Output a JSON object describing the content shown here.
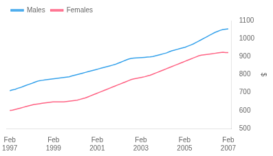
{
  "chart_data": {
    "type": "line",
    "ylabel": "$",
    "x": [
      1997.0833,
      1997.2068,
      1997.3302,
      1997.4537,
      1997.5772,
      1997.7006,
      1997.8241,
      1997.9475,
      1998.071,
      1998.1944,
      1998.3179,
      1998.4414,
      1998.5648,
      1998.6883,
      1998.8117,
      1998.9352,
      1999.0586,
      1999.1821,
      1999.3056,
      1999.429,
      1999.5525,
      1999.6759,
      1999.7994,
      1999.9228,
      2000.0463,
      2000.1698,
      2000.2932,
      2000.4167,
      2000.5401,
      2000.6636,
      2000.787,
      2000.9105,
      2001.034,
      2001.1574,
      2001.2809,
      2001.4043,
      2001.5278,
      2001.6512,
      2001.7747,
      2001.8981,
      2002.0216,
      2002.1451,
      2002.2685,
      2002.392,
      2002.5154,
      2002.6389,
      2002.7623,
      2002.8858,
      2003.0093,
      2003.1327,
      2003.2562,
      2003.3796,
      2003.5031,
      2003.6265,
      2003.75,
      2003.8735,
      2003.9969,
      2004.1204,
      2004.2438,
      2004.3673,
      2004.4907,
      2004.6142,
      2004.7377,
      2004.8611,
      2004.9846,
      2005.108,
      2005.2315,
      2005.3549,
      2005.4784,
      2005.6019,
      2005.7253,
      2005.8488,
      2005.9722,
      2006.0957,
      2006.2191,
      2006.3426,
      2006.466,
      2006.5895,
      2006.713,
      2006.8364,
      2006.9599,
      2007.0833
    ],
    "series": [
      {
        "name": "Males",
        "values": [
          710,
          715,
          718,
          724,
          728,
          734,
          740,
          745,
          750,
          756,
          762,
          766,
          768,
          770,
          772,
          774,
          776,
          778,
          780,
          782,
          784,
          786,
          788,
          792,
          796,
          800,
          804,
          808,
          812,
          816,
          820,
          824,
          828,
          832,
          836,
          840,
          844,
          848,
          852,
          856,
          862,
          868,
          874,
          880,
          886,
          890,
          892,
          893,
          894,
          895,
          896,
          897,
          898,
          900,
          904,
          908,
          912,
          916,
          920,
          926,
          932,
          936,
          940,
          944,
          948,
          952,
          958,
          964,
          970,
          978,
          986,
          994,
          1002,
          1010,
          1018,
          1026,
          1034,
          1040,
          1046,
          1050,
          1052,
          1054
        ]
      },
      {
        "name": "Females",
        "values": [
          600,
          602,
          606,
          610,
          614,
          618,
          622,
          626,
          630,
          634,
          636,
          638,
          640,
          642,
          644,
          646,
          648,
          648,
          648,
          648,
          648,
          650,
          652,
          654,
          656,
          658,
          662,
          666,
          670,
          676,
          682,
          688,
          694,
          700,
          706,
          712,
          718,
          724,
          730,
          736,
          742,
          748,
          754,
          760,
          766,
          772,
          776,
          779,
          782,
          785,
          788,
          792,
          796,
          802,
          808,
          814,
          820,
          826,
          832,
          838,
          844,
          850,
          856,
          862,
          868,
          874,
          880,
          886,
          892,
          898,
          904,
          908,
          910,
          912,
          914,
          916,
          918,
          920,
          922,
          924,
          922,
          922
        ]
      }
    ],
    "xlim": [
      1996.9333,
      2007.2333
    ],
    "xticks": [
      {
        "value": 1997.0833,
        "label": "Feb\n1997"
      },
      {
        "value": 1999.0833,
        "label": "Feb\n1999"
      },
      {
        "value": 2001.0833,
        "label": "Feb\n2001"
      },
      {
        "value": 2003.0833,
        "label": "Feb\n2003"
      },
      {
        "value": 2005.0833,
        "label": "Feb\n2005"
      },
      {
        "value": 2007.0833,
        "label": "Feb\n2007"
      }
    ],
    "ylim": [
      500,
      1100
    ],
    "yticks": [
      500,
      600,
      700,
      800,
      900,
      1000,
      1100
    ],
    "grid": false,
    "legend": "upper left"
  }
}
